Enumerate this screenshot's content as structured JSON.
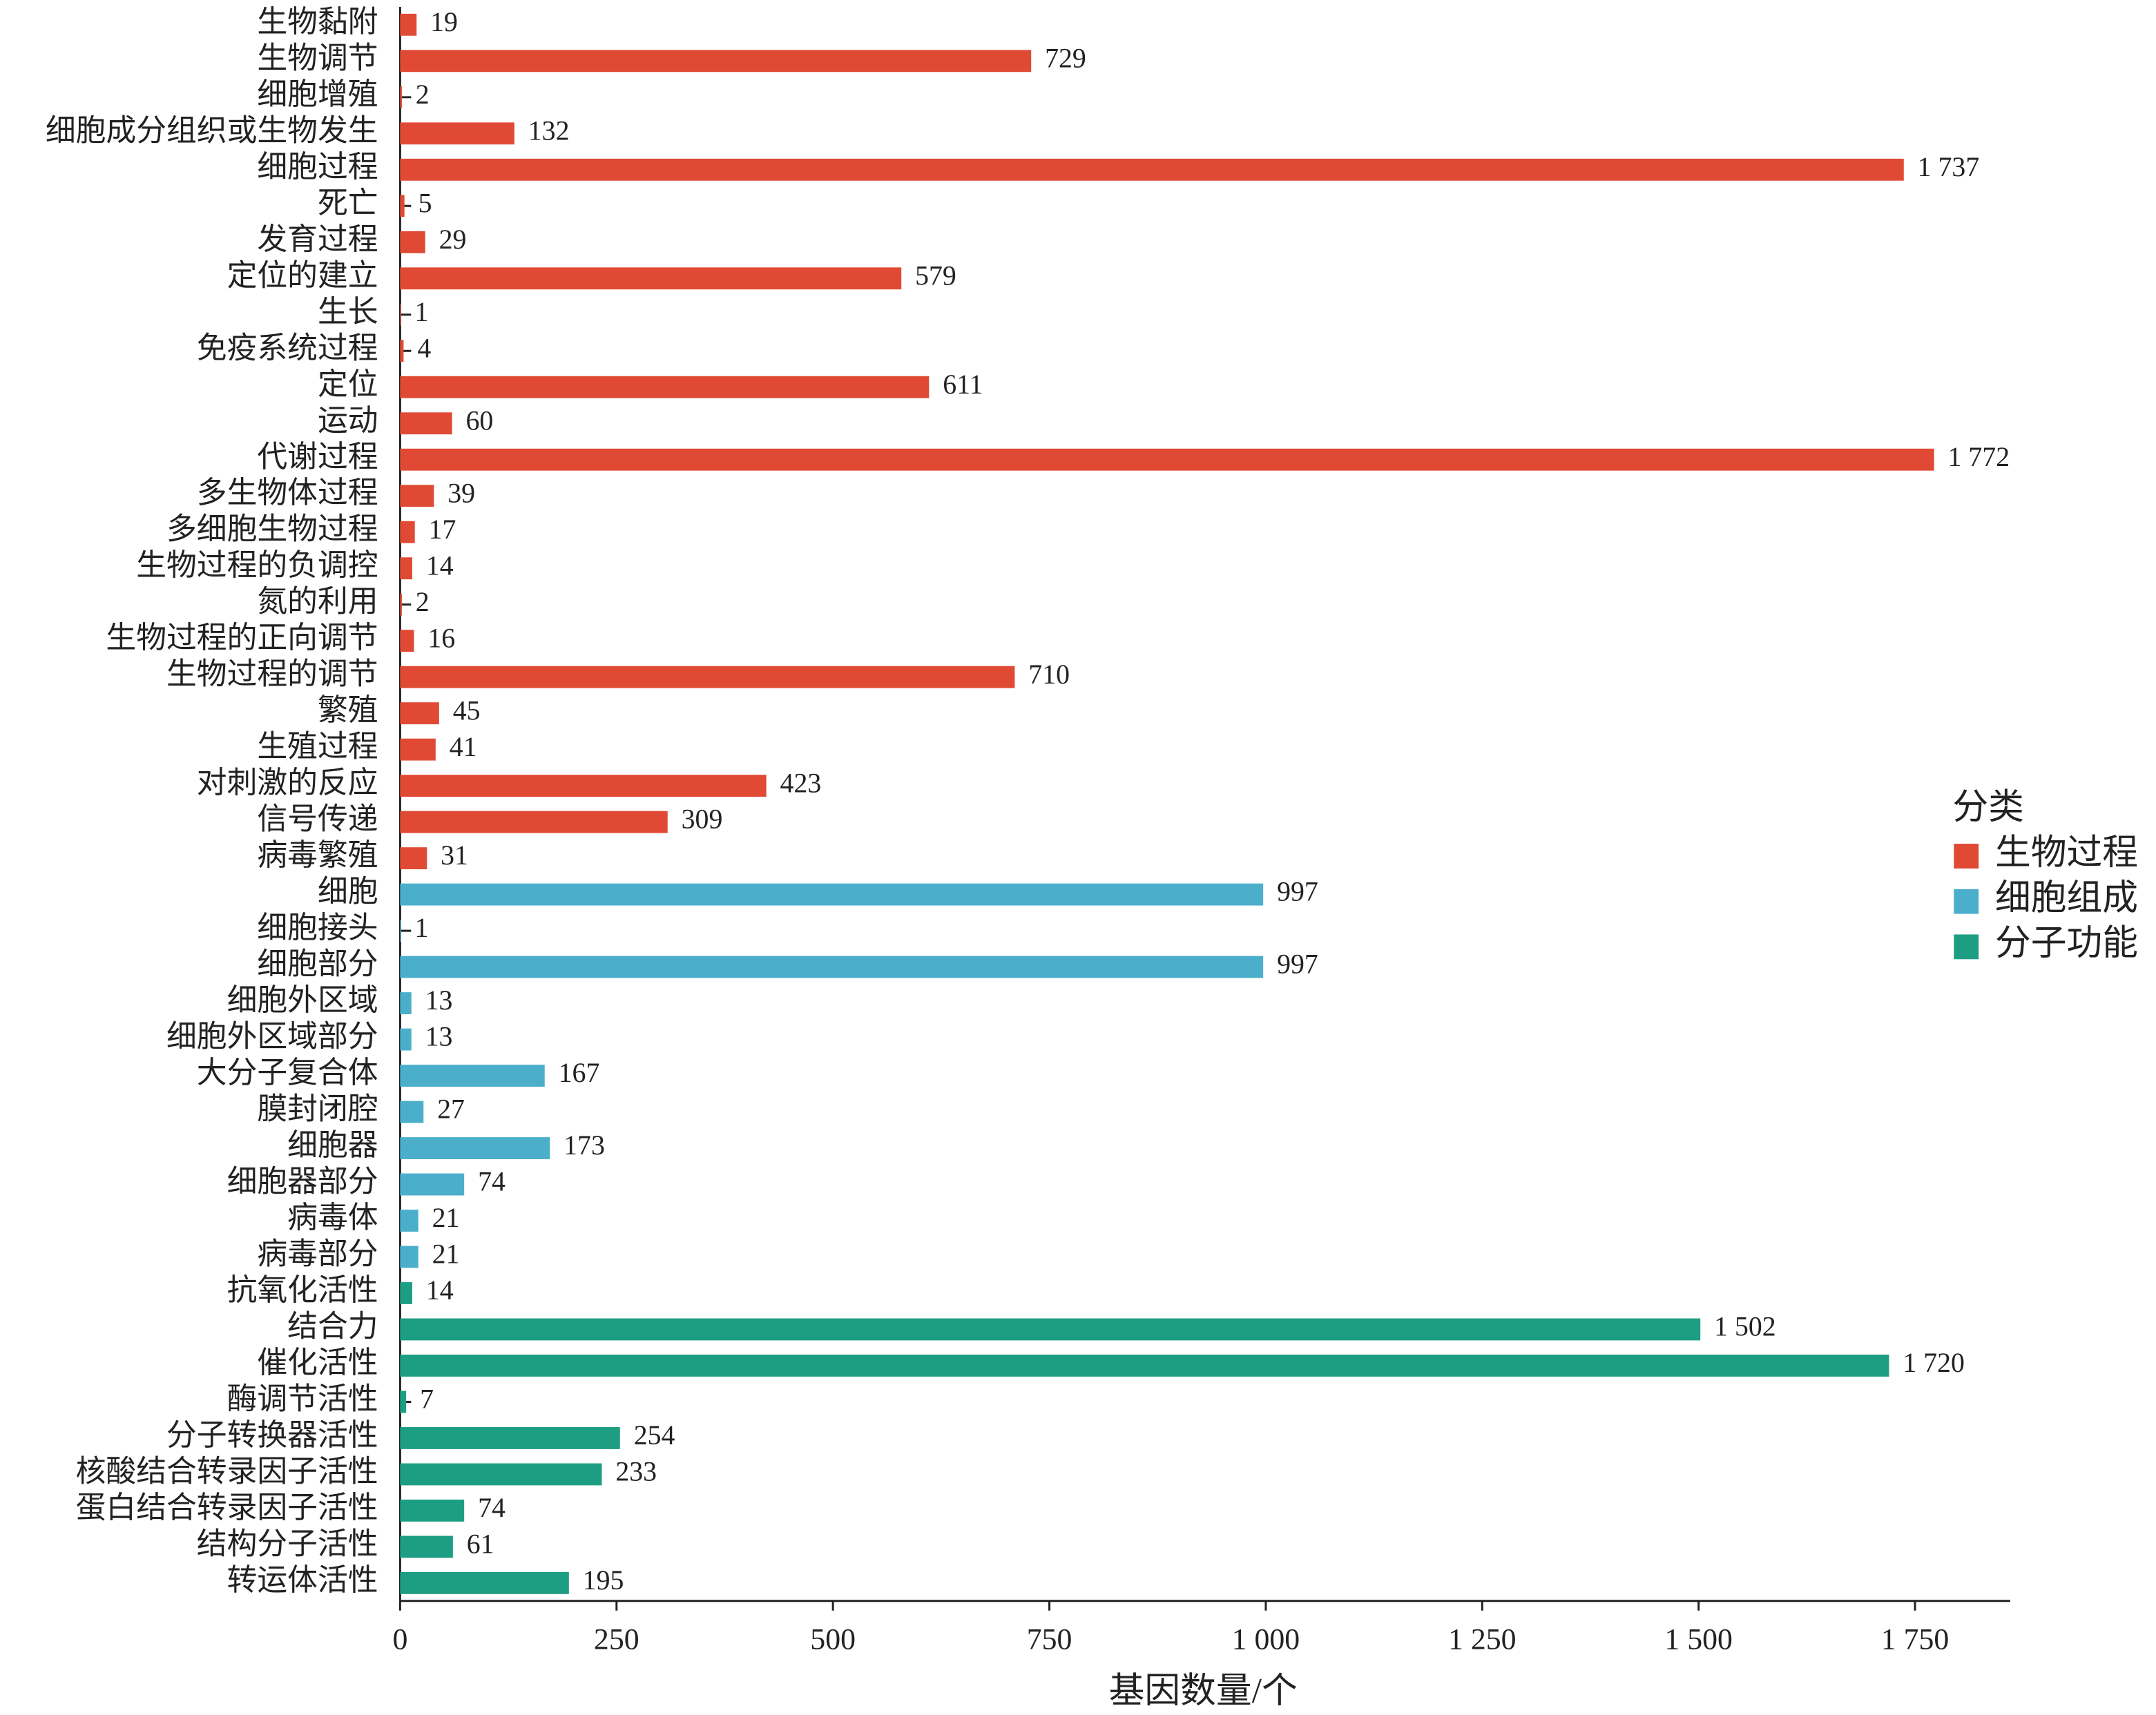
{
  "chart_data": {
    "type": "hbar",
    "x_label": "基因数量/个",
    "legend_title": "分类",
    "legend": "right",
    "xlim": [
      0,
      1860
    ],
    "xticks": [
      0,
      250,
      500,
      750,
      {
        "value": 1000,
        "label": "1 000"
      },
      {
        "value": 1250,
        "label": "1 250"
      },
      {
        "value": 1500,
        "label": "1 500"
      },
      {
        "value": 1750,
        "label": "1 750"
      }
    ],
    "series": [
      {
        "name": "生物过程",
        "color": "#e04a35",
        "categories": [
          "生物黏附",
          "生物调节",
          "细胞增殖",
          "细胞成分组织或生物发生",
          "细胞过程",
          "死亡",
          "发育过程",
          "定位的建立",
          "生长",
          "免疫系统过程",
          "定位",
          "运动",
          "代谢过程",
          "多生物体过程",
          "多细胞生物过程",
          "生物过程的负调控",
          "氮的利用",
          "生物过程的正向调节",
          "生物过程的调节",
          "繁殖",
          "生殖过程",
          "对刺激的反应",
          "信号传递",
          "病毒繁殖"
        ],
        "values": [
          19,
          729,
          2,
          132,
          1737,
          5,
          29,
          579,
          1,
          4,
          611,
          60,
          1772,
          39,
          17,
          14,
          2,
          16,
          710,
          45,
          41,
          423,
          309,
          31
        ],
        "value_labels": [
          null,
          null,
          null,
          null,
          "1 737",
          null,
          null,
          null,
          null,
          null,
          null,
          null,
          "1 772",
          null,
          null,
          null,
          null,
          null,
          null,
          null,
          null,
          null,
          null,
          null
        ]
      },
      {
        "name": "细胞组成",
        "color": "#4bafcb",
        "categories": [
          "细胞",
          "细胞接头",
          "细胞部分",
          "细胞外区域",
          "细胞外区域部分",
          "大分子复合体",
          "膜封闭腔",
          "细胞器",
          "细胞器部分",
          "病毒体",
          "病毒部分"
        ],
        "values": [
          997,
          1,
          997,
          13,
          13,
          167,
          27,
          173,
          74,
          21,
          21
        ]
      },
      {
        "name": "分子功能",
        "color": "#1d9e83",
        "categories": [
          "抗氧化活性",
          "结合力",
          "催化活性",
          "酶调节活性",
          "分子转换器活性",
          "核酸结合转录因子活性",
          "蛋白结合转录因子活性",
          "结构分子活性",
          "转运体活性"
        ],
        "values": [
          14,
          1502,
          1720,
          7,
          254,
          233,
          74,
          61,
          195
        ],
        "value_labels": [
          null,
          "1 502",
          "1 720",
          null,
          null,
          null,
          null,
          null,
          null
        ]
      }
    ]
  }
}
